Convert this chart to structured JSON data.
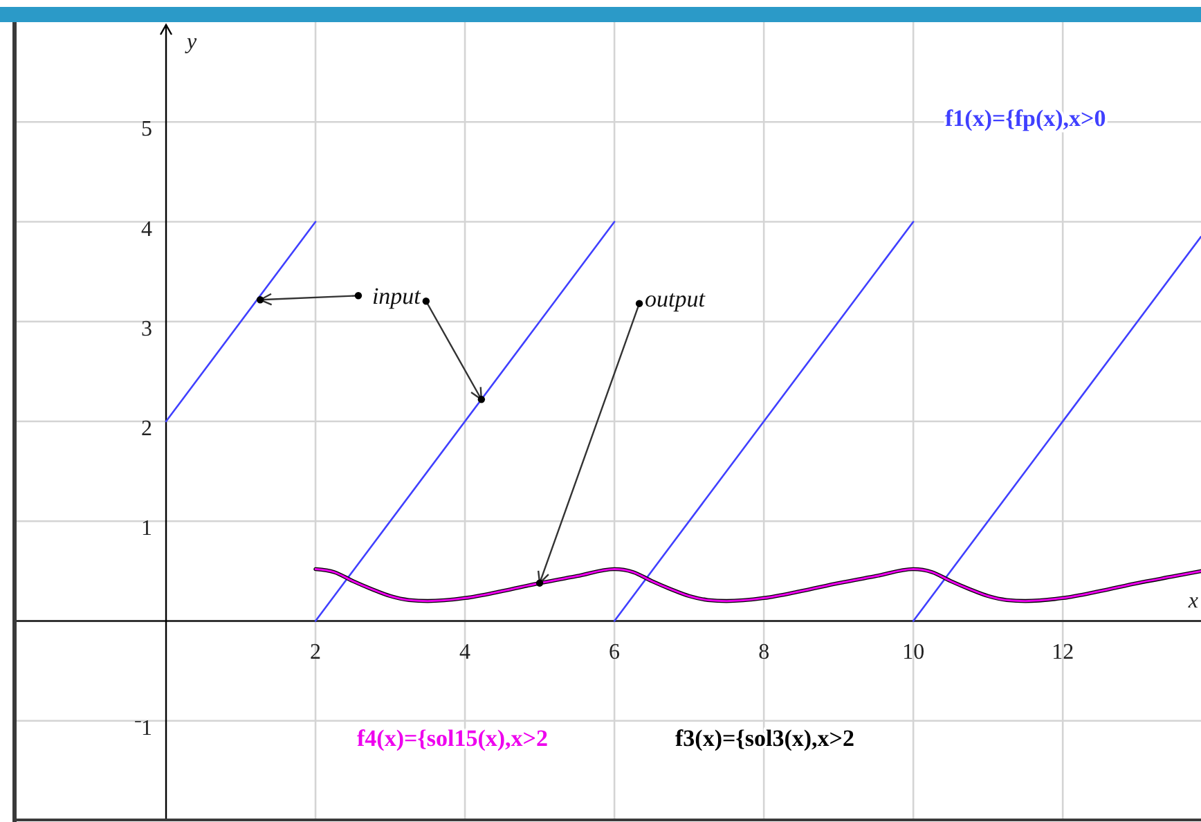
{
  "chart_data": {
    "type": "line",
    "xlabel": "x",
    "ylabel": "y",
    "xlim": [
      -2,
      13.85
    ],
    "ylim": [
      -2,
      6
    ],
    "xticks": [
      2,
      4,
      6,
      8,
      10,
      12
    ],
    "yticks": [
      {
        "value": -1,
        "label": "⁻1"
      },
      1,
      2,
      3,
      4,
      5
    ],
    "grid": true,
    "series": [
      {
        "name": "f1(x)={fp(x),x>0",
        "color": "#4040ff",
        "x": [
          0,
          2,
          null,
          2,
          6,
          null,
          6,
          10,
          null,
          10,
          13.85
        ],
        "values": [
          2,
          4,
          null,
          0,
          4,
          null,
          0,
          4,
          null,
          0,
          3.85
        ]
      },
      {
        "name": "f3(x)={sol3(x),x>2",
        "color": "#000000",
        "x": [
          2,
          2.25,
          2.5,
          2.75,
          3,
          3.25,
          3.5,
          4,
          4.5,
          5,
          5.5,
          6,
          6.25,
          6.5,
          6.75,
          7,
          7.25,
          7.5,
          8,
          8.5,
          9,
          9.5,
          10,
          10.25,
          10.5,
          10.75,
          11,
          11.25,
          11.5,
          12,
          12.5,
          13,
          13.5,
          13.85
        ],
        "values": [
          0.52,
          0.49,
          0.4,
          0.32,
          0.25,
          0.21,
          0.2,
          0.23,
          0.3,
          0.38,
          0.45,
          0.52,
          0.49,
          0.4,
          0.32,
          0.25,
          0.21,
          0.2,
          0.23,
          0.3,
          0.38,
          0.45,
          0.52,
          0.49,
          0.4,
          0.32,
          0.25,
          0.21,
          0.2,
          0.23,
          0.3,
          0.38,
          0.45,
          0.5
        ]
      },
      {
        "name": "f4(x)={sol15(x),x>2",
        "color": "#ee00ee",
        "x": [
          2,
          2.25,
          2.5,
          2.75,
          3,
          3.25,
          3.5,
          4,
          4.5,
          5,
          5.5,
          6,
          6.25,
          6.5,
          6.75,
          7,
          7.25,
          7.5,
          8,
          8.5,
          9,
          9.5,
          10,
          10.25,
          10.5,
          10.75,
          11,
          11.25,
          11.5,
          12,
          12.5,
          13,
          13.5,
          13.85
        ],
        "values": [
          0.52,
          0.49,
          0.4,
          0.32,
          0.25,
          0.21,
          0.2,
          0.23,
          0.3,
          0.38,
          0.45,
          0.52,
          0.49,
          0.4,
          0.32,
          0.25,
          0.21,
          0.2,
          0.23,
          0.3,
          0.38,
          0.45,
          0.52,
          0.49,
          0.4,
          0.32,
          0.25,
          0.21,
          0.2,
          0.23,
          0.3,
          0.38,
          0.45,
          0.5
        ]
      }
    ],
    "annotations": [
      {
        "text": "input",
        "x": 4.22,
        "y": 2.22
      },
      {
        "text": "output",
        "x": 5,
        "y": 0.38
      }
    ]
  }
}
